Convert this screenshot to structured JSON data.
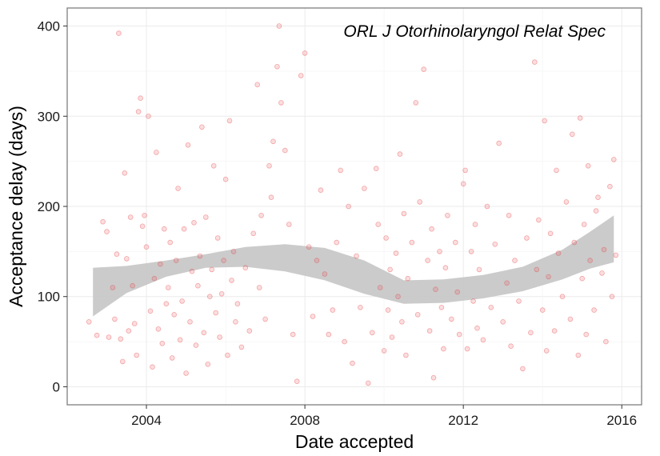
{
  "chart_data": {
    "type": "scatter",
    "title": "",
    "annotation": "ORL J Otorhinolaryngol Relat Spec",
    "xlabel": "Date accepted",
    "ylabel": "Acceptance delay (days)",
    "xlim": [
      2002.0,
      2016.5
    ],
    "ylim": [
      -20,
      420
    ],
    "x_ticks": [
      2004,
      2008,
      2012,
      2016
    ],
    "x_tick_labels": [
      "2004",
      "2008",
      "2012",
      "2016"
    ],
    "y_ticks": [
      0,
      100,
      200,
      300,
      400
    ],
    "y_tick_labels": [
      "0",
      "100",
      "200",
      "300",
      "400"
    ],
    "grid": true,
    "legend": "none",
    "colors": {
      "points": "#e8474b",
      "band": "#c8c8c8",
      "grid": "#ebebeb",
      "frame": "#7f7f7f"
    },
    "smooth_band": {
      "x": [
        2002.65,
        2003.5,
        2004.5,
        2005.5,
        2006.5,
        2007.5,
        2008.5,
        2009.5,
        2010.5,
        2011.5,
        2012.5,
        2013.5,
        2014.5,
        2015.2,
        2015.8
      ],
      "upper": [
        132,
        134,
        140,
        147,
        155,
        158,
        154,
        140,
        118,
        119,
        124,
        133,
        152,
        172,
        190
      ],
      "lower": [
        78,
        104,
        122,
        132,
        133,
        128,
        118,
        103,
        92,
        93,
        98,
        106,
        119,
        131,
        138
      ]
    },
    "series": [
      {
        "points": [
          [
            2002.55,
            72
          ],
          [
            2002.75,
            57
          ],
          [
            2002.9,
            183
          ],
          [
            2003.0,
            172
          ],
          [
            2003.05,
            55
          ],
          [
            2003.15,
            110
          ],
          [
            2003.2,
            75
          ],
          [
            2003.25,
            147
          ],
          [
            2003.3,
            392
          ],
          [
            2003.35,
            53
          ],
          [
            2003.4,
            28
          ],
          [
            2003.45,
            237
          ],
          [
            2003.5,
            142
          ],
          [
            2003.55,
            62
          ],
          [
            2003.6,
            188
          ],
          [
            2003.65,
            112
          ],
          [
            2003.7,
            70
          ],
          [
            2003.75,
            35
          ],
          [
            2003.8,
            305
          ],
          [
            2003.85,
            320
          ],
          [
            2003.9,
            178
          ],
          [
            2003.95,
            190
          ],
          [
            2004.0,
            155
          ],
          [
            2004.05,
            300
          ],
          [
            2004.1,
            84
          ],
          [
            2004.15,
            22
          ],
          [
            2004.2,
            120
          ],
          [
            2004.25,
            260
          ],
          [
            2004.3,
            64
          ],
          [
            2004.35,
            136
          ],
          [
            2004.4,
            48
          ],
          [
            2004.45,
            175
          ],
          [
            2004.5,
            92
          ],
          [
            2004.55,
            110
          ],
          [
            2004.6,
            160
          ],
          [
            2004.65,
            32
          ],
          [
            2004.7,
            80
          ],
          [
            2004.75,
            140
          ],
          [
            2004.8,
            220
          ],
          [
            2004.85,
            52
          ],
          [
            2004.9,
            95
          ],
          [
            2004.95,
            175
          ],
          [
            2005.0,
            15
          ],
          [
            2005.05,
            268
          ],
          [
            2005.1,
            72
          ],
          [
            2005.15,
            128
          ],
          [
            2005.2,
            182
          ],
          [
            2005.25,
            46
          ],
          [
            2005.3,
            112
          ],
          [
            2005.35,
            145
          ],
          [
            2005.4,
            288
          ],
          [
            2005.45,
            60
          ],
          [
            2005.5,
            188
          ],
          [
            2005.55,
            25
          ],
          [
            2005.6,
            100
          ],
          [
            2005.65,
            130
          ],
          [
            2005.7,
            245
          ],
          [
            2005.75,
            82
          ],
          [
            2005.8,
            165
          ],
          [
            2005.85,
            55
          ],
          [
            2005.9,
            103
          ],
          [
            2005.95,
            140
          ],
          [
            2006.0,
            230
          ],
          [
            2006.05,
            35
          ],
          [
            2006.1,
            295
          ],
          [
            2006.15,
            118
          ],
          [
            2006.2,
            150
          ],
          [
            2006.25,
            72
          ],
          [
            2006.3,
            92
          ],
          [
            2006.4,
            44
          ],
          [
            2006.5,
            132
          ],
          [
            2006.6,
            62
          ],
          [
            2006.7,
            170
          ],
          [
            2006.8,
            335
          ],
          [
            2006.85,
            110
          ],
          [
            2006.9,
            190
          ],
          [
            2007.0,
            75
          ],
          [
            2007.1,
            245
          ],
          [
            2007.15,
            210
          ],
          [
            2007.2,
            272
          ],
          [
            2007.3,
            355
          ],
          [
            2007.35,
            400
          ],
          [
            2007.4,
            315
          ],
          [
            2007.5,
            262
          ],
          [
            2007.6,
            180
          ],
          [
            2007.7,
            58
          ],
          [
            2007.8,
            6
          ],
          [
            2007.9,
            345
          ],
          [
            2008.0,
            370
          ],
          [
            2008.1,
            155
          ],
          [
            2008.2,
            78
          ],
          [
            2008.3,
            140
          ],
          [
            2008.4,
            218
          ],
          [
            2008.5,
            125
          ],
          [
            2008.6,
            58
          ],
          [
            2008.7,
            85
          ],
          [
            2008.8,
            160
          ],
          [
            2008.9,
            240
          ],
          [
            2009.0,
            50
          ],
          [
            2009.1,
            200
          ],
          [
            2009.2,
            26
          ],
          [
            2009.3,
            145
          ],
          [
            2009.4,
            88
          ],
          [
            2009.5,
            220
          ],
          [
            2009.6,
            4
          ],
          [
            2009.7,
            60
          ],
          [
            2009.8,
            242
          ],
          [
            2009.85,
            180
          ],
          [
            2009.9,
            110
          ],
          [
            2010.0,
            40
          ],
          [
            2010.05,
            165
          ],
          [
            2010.1,
            85
          ],
          [
            2010.15,
            130
          ],
          [
            2010.2,
            55
          ],
          [
            2010.3,
            148
          ],
          [
            2010.35,
            100
          ],
          [
            2010.4,
            258
          ],
          [
            2010.45,
            72
          ],
          [
            2010.5,
            192
          ],
          [
            2010.55,
            35
          ],
          [
            2010.6,
            120
          ],
          [
            2010.7,
            160
          ],
          [
            2010.8,
            315
          ],
          [
            2010.85,
            80
          ],
          [
            2010.9,
            205
          ],
          [
            2011.0,
            352
          ],
          [
            2011.1,
            140
          ],
          [
            2011.15,
            62
          ],
          [
            2011.2,
            175
          ],
          [
            2011.25,
            10
          ],
          [
            2011.3,
            108
          ],
          [
            2011.4,
            150
          ],
          [
            2011.45,
            88
          ],
          [
            2011.5,
            42
          ],
          [
            2011.55,
            132
          ],
          [
            2011.6,
            190
          ],
          [
            2011.7,
            75
          ],
          [
            2011.8,
            160
          ],
          [
            2011.85,
            105
          ],
          [
            2011.9,
            58
          ],
          [
            2012.0,
            225
          ],
          [
            2012.05,
            240
          ],
          [
            2012.1,
            42
          ],
          [
            2012.2,
            150
          ],
          [
            2012.25,
            95
          ],
          [
            2012.3,
            180
          ],
          [
            2012.35,
            65
          ],
          [
            2012.4,
            130
          ],
          [
            2012.5,
            52
          ],
          [
            2012.6,
            200
          ],
          [
            2012.7,
            88
          ],
          [
            2012.8,
            158
          ],
          [
            2012.9,
            270
          ],
          [
            2013.0,
            72
          ],
          [
            2013.1,
            115
          ],
          [
            2013.15,
            190
          ],
          [
            2013.2,
            45
          ],
          [
            2013.3,
            140
          ],
          [
            2013.4,
            95
          ],
          [
            2013.5,
            20
          ],
          [
            2013.6,
            165
          ],
          [
            2013.7,
            60
          ],
          [
            2013.8,
            360
          ],
          [
            2013.85,
            130
          ],
          [
            2013.9,
            185
          ],
          [
            2014.0,
            85
          ],
          [
            2014.05,
            295
          ],
          [
            2014.1,
            40
          ],
          [
            2014.15,
            122
          ],
          [
            2014.2,
            170
          ],
          [
            2014.3,
            62
          ],
          [
            2014.35,
            240
          ],
          [
            2014.4,
            148
          ],
          [
            2014.5,
            100
          ],
          [
            2014.6,
            205
          ],
          [
            2014.7,
            75
          ],
          [
            2014.75,
            280
          ],
          [
            2014.8,
            160
          ],
          [
            2014.9,
            35
          ],
          [
            2014.95,
            298
          ],
          [
            2015.0,
            120
          ],
          [
            2015.05,
            180
          ],
          [
            2015.1,
            58
          ],
          [
            2015.15,
            245
          ],
          [
            2015.2,
            140
          ],
          [
            2015.3,
            85
          ],
          [
            2015.35,
            195
          ],
          [
            2015.4,
            210
          ],
          [
            2015.5,
            126
          ],
          [
            2015.55,
            152
          ],
          [
            2015.6,
            50
          ],
          [
            2015.7,
            222
          ],
          [
            2015.75,
            100
          ],
          [
            2015.8,
            252
          ],
          [
            2015.85,
            146
          ]
        ]
      }
    ]
  }
}
